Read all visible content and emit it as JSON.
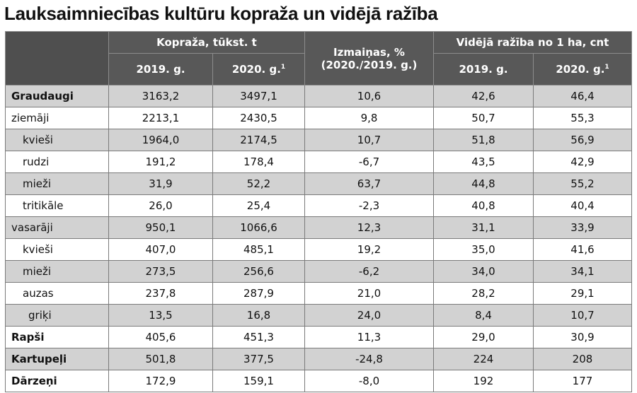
{
  "title": "Lauksaimniecības kultūru kopraža un vidējā ražība",
  "headers": {
    "harvest": "Kopraža, tūkst. t",
    "change_line1": "Izmaiņas, %",
    "change_line2": "(2020./2019. g.)",
    "yield": "Vidējā ražība no 1 ha, cnt",
    "year_2019": "2019. g.",
    "year_2020": "2020. g.",
    "footnote_mark": "1"
  },
  "rows": [
    {
      "label": "Graudaugi",
      "h2019": "3163,2",
      "h2020": "3497,1",
      "change": "10,6",
      "y2019": "42,6",
      "y2020": "46,4"
    },
    {
      "label": "ziemāji",
      "h2019": "2213,1",
      "h2020": "2430,5",
      "change": "9,8",
      "y2019": "50,7",
      "y2020": "55,3"
    },
    {
      "label": "kvieši",
      "h2019": "1964,0",
      "h2020": "2174,5",
      "change": "10,7",
      "y2019": "51,8",
      "y2020": "56,9"
    },
    {
      "label": "rudzi",
      "h2019": "191,2",
      "h2020": "178,4",
      "change": "-6,7",
      "y2019": "43,5",
      "y2020": "42,9"
    },
    {
      "label": "mieži",
      "h2019": "31,9",
      "h2020": "52,2",
      "change": "63,7",
      "y2019": "44,8",
      "y2020": "55,2"
    },
    {
      "label": "tritikāle",
      "h2019": "26,0",
      "h2020": "25,4",
      "change": "-2,3",
      "y2019": "40,8",
      "y2020": "40,4"
    },
    {
      "label": "vasarāji",
      "h2019": "950,1",
      "h2020": "1066,6",
      "change": "12,3",
      "y2019": "31,1",
      "y2020": "33,9"
    },
    {
      "label": "kvieši",
      "h2019": "407,0",
      "h2020": "485,1",
      "change": "19,2",
      "y2019": "35,0",
      "y2020": "41,6"
    },
    {
      "label": "mieži",
      "h2019": "273,5",
      "h2020": "256,6",
      "change": "-6,2",
      "y2019": "34,0",
      "y2020": "34,1"
    },
    {
      "label": "auzas",
      "h2019": "237,8",
      "h2020": "287,9",
      "change": "21,0",
      "y2019": "28,2",
      "y2020": "29,1"
    },
    {
      "label": "griķi",
      "h2019": "13,5",
      "h2020": "16,8",
      "change": "24,0",
      "y2019": "8,4",
      "y2020": "10,7"
    },
    {
      "label": "Rapši",
      "h2019": "405,6",
      "h2020": "451,3",
      "change": "11,3",
      "y2019": "29,0",
      "y2020": "30,9"
    },
    {
      "label": "Kartupeļi",
      "h2019": "501,8",
      "h2020": "377,5",
      "change": "-24,8",
      "y2019": "224",
      "y2020": "208"
    },
    {
      "label": "Dārzeņi",
      "h2019": "172,9",
      "h2020": "159,1",
      "change": "-8,0",
      "y2019": "192",
      "y2020": "177"
    }
  ]
}
